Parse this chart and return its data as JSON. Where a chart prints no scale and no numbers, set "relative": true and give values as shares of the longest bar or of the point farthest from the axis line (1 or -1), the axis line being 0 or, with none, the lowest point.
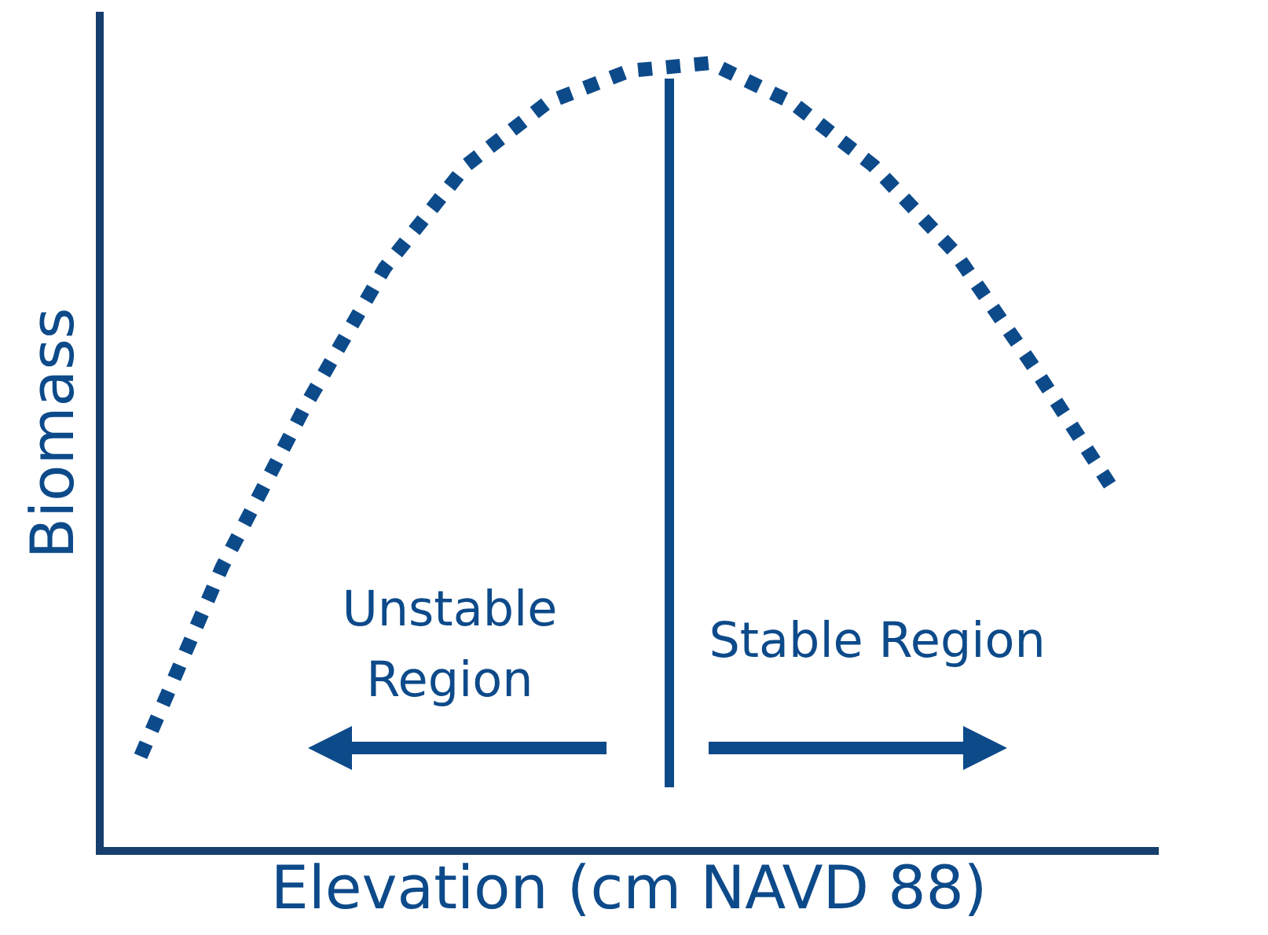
{
  "chart_data": {
    "type": "line",
    "relative": true,
    "xlabel": "Elevation (cm NAVD 88)",
    "ylabel": "Biomass",
    "categories": [
      null,
      null,
      null,
      null,
      null,
      null,
      null,
      null,
      null,
      null,
      null,
      null,
      null
    ],
    "series": [
      {
        "color": "#0d4a8a",
        "values": [
          0.12,
          0.36,
          0.56,
          0.74,
          0.87,
          0.95,
          0.99,
          1,
          0.95,
          0.87,
          0.76,
          0.61,
          0.45
        ]
      }
    ],
    "annotations": [
      "Unstable Region",
      "Stable Region"
    ],
    "line_style": "dotted",
    "marker": "none",
    "grid": false,
    "legend": false
  }
}
